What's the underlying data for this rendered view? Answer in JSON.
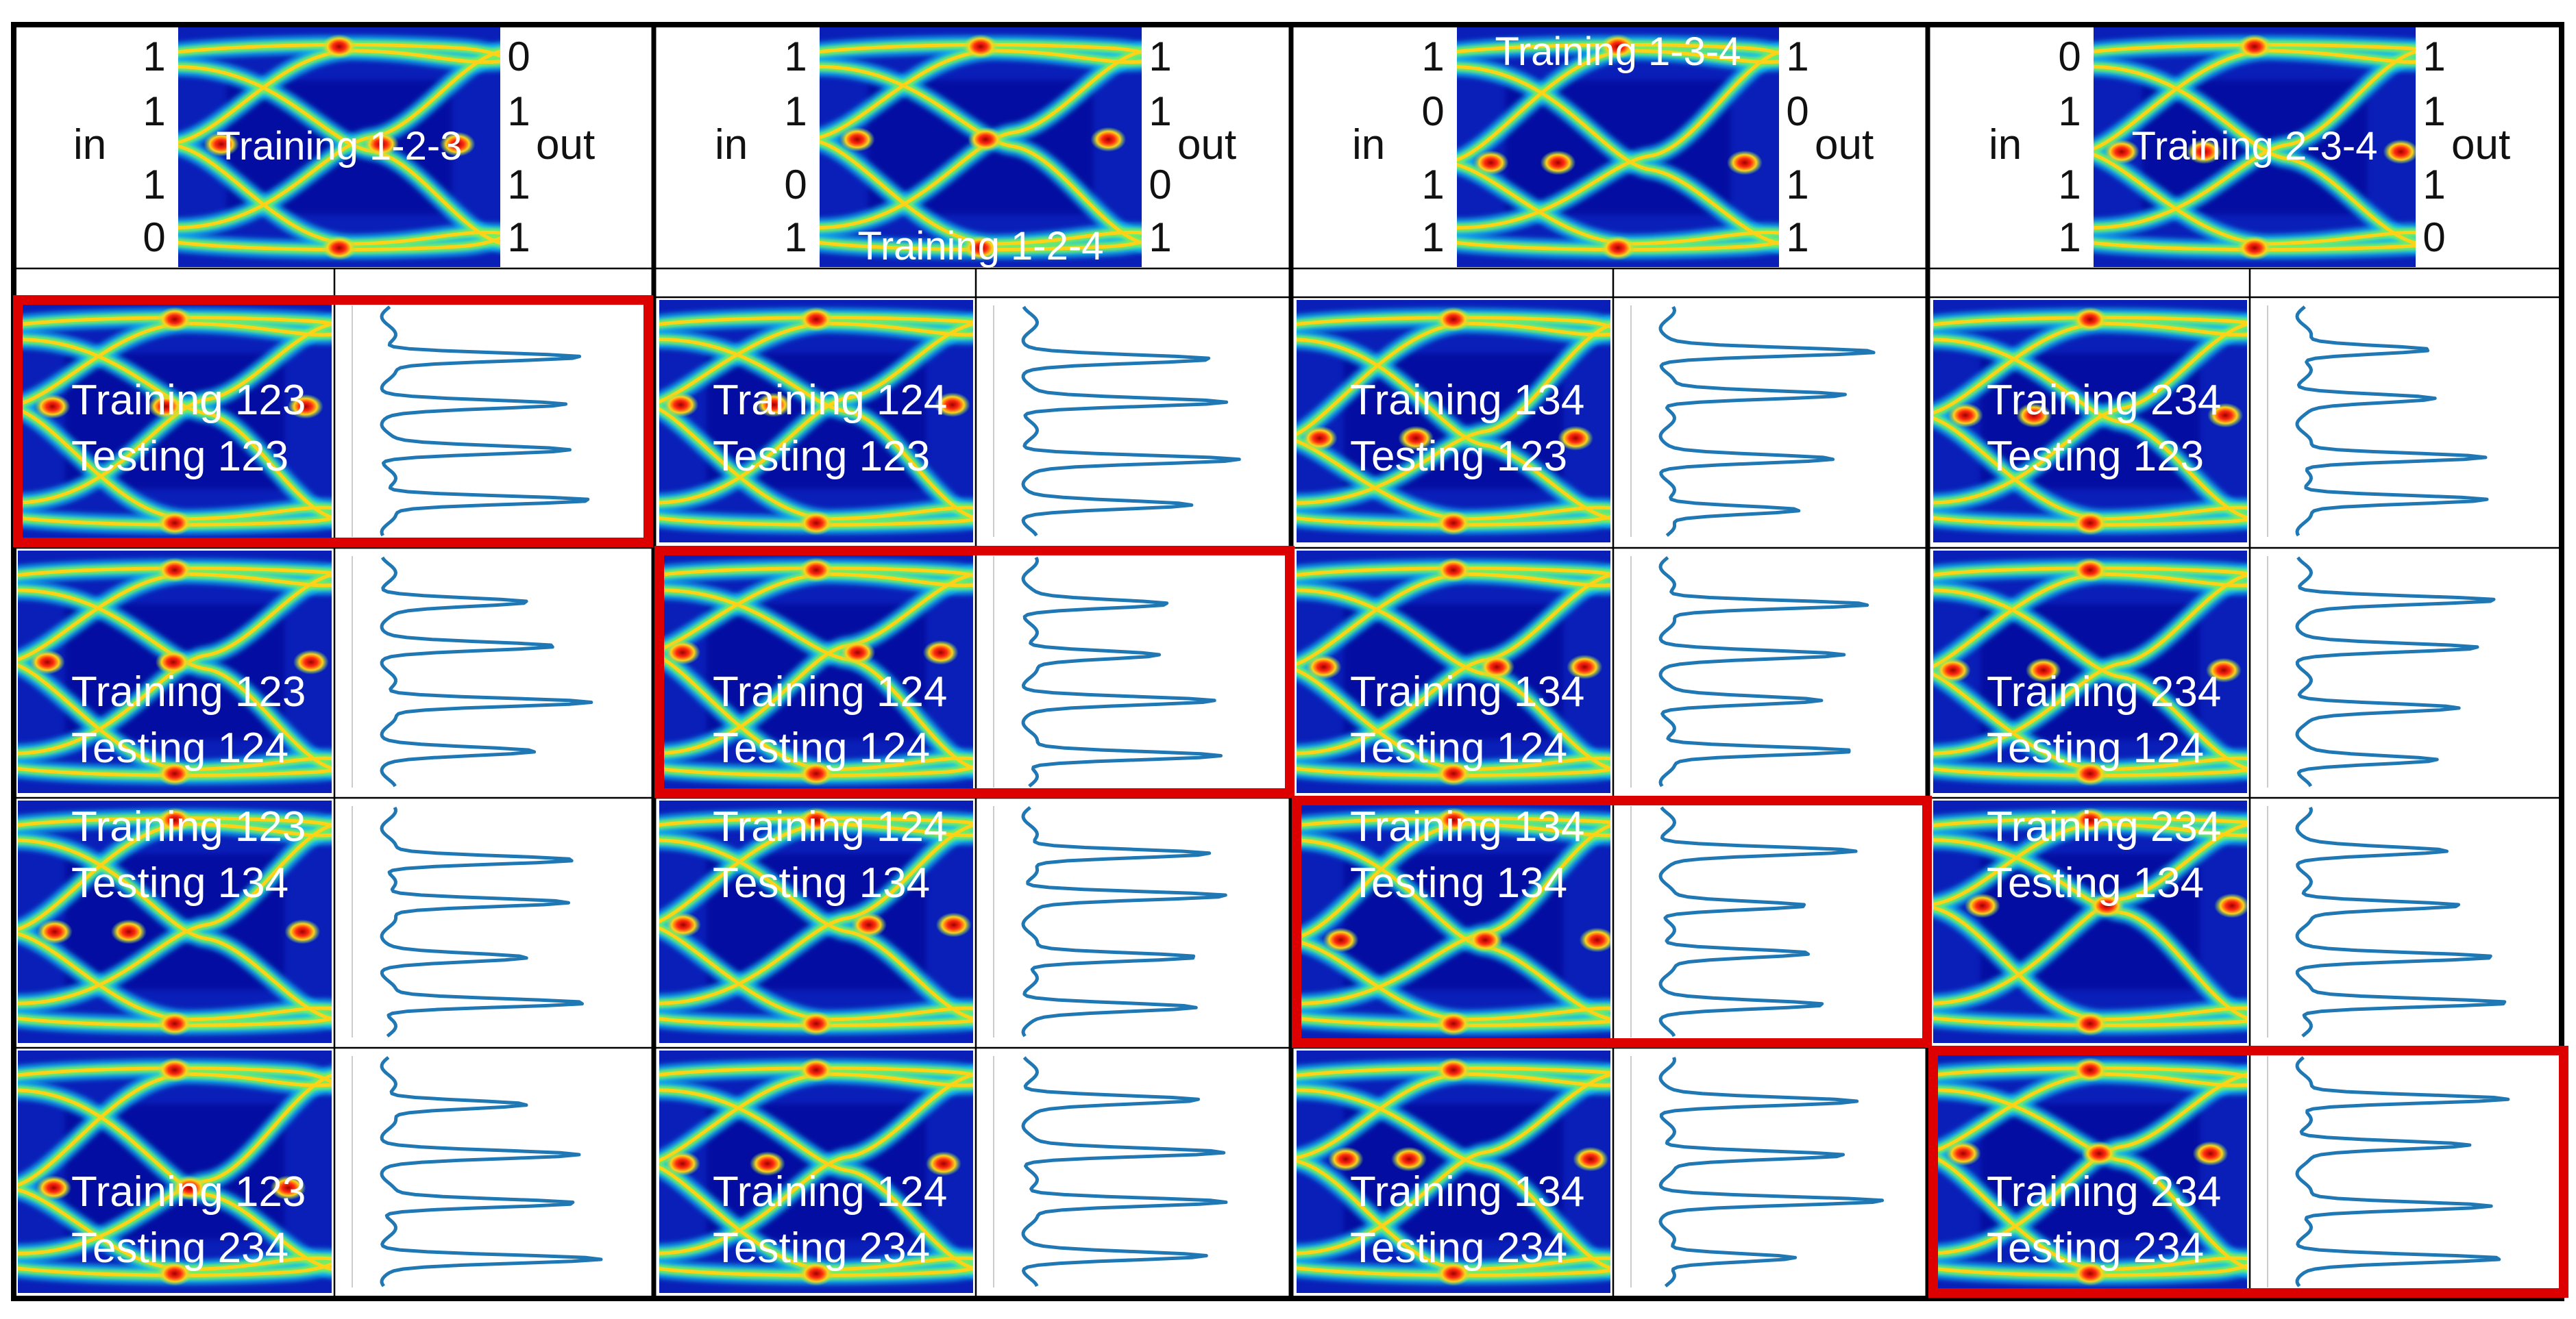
{
  "columns": [
    {
      "training_label": "Training 1-2-3",
      "title_pos": "middle",
      "in_label": "in",
      "out_label": "out",
      "in_bits": [
        "1",
        "1",
        "1",
        "0"
      ],
      "out_bits": [
        "0",
        "1",
        "1",
        "1"
      ]
    },
    {
      "training_label": "Training 1-2-4",
      "title_pos": "bottom",
      "in_label": "in",
      "out_label": "out",
      "in_bits": [
        "1",
        "1",
        "0",
        "1"
      ],
      "out_bits": [
        "1",
        "1",
        "0",
        "1"
      ]
    },
    {
      "training_label": "Training 1-3-4",
      "title_pos": "top",
      "in_label": "in",
      "out_label": "out",
      "in_bits": [
        "1",
        "0",
        "1",
        "1"
      ],
      "out_bits": [
        "1",
        "0",
        "1",
        "1"
      ]
    },
    {
      "training_label": "Training 2-3-4",
      "title_pos": "middle",
      "in_label": "in",
      "out_label": "out",
      "in_bits": [
        "0",
        "1",
        "1",
        "1"
      ],
      "out_bits": [
        "1",
        "1",
        "1",
        "0"
      ]
    }
  ],
  "grid": {
    "rows": [
      {
        "testing": "Testing 123",
        "cells": [
          {
            "training": "Training 123",
            "highlighted": true
          },
          {
            "training": "Training 124",
            "highlighted": false
          },
          {
            "training": "Training 134",
            "highlighted": false
          },
          {
            "training": "Training 234",
            "highlighted": false
          }
        ]
      },
      {
        "testing": "Testing 124",
        "cells": [
          {
            "training": "Training 123",
            "highlighted": false
          },
          {
            "training": "Training 124",
            "highlighted": true
          },
          {
            "training": "Training 134",
            "highlighted": false
          },
          {
            "training": "Training 234",
            "highlighted": false
          }
        ]
      },
      {
        "testing": "Testing 134",
        "cells": [
          {
            "training": "Training 123",
            "highlighted": false
          },
          {
            "training": "Training 124",
            "highlighted": false
          },
          {
            "training": "Training 134",
            "highlighted": true
          },
          {
            "training": "Training 234",
            "highlighted": false
          }
        ]
      },
      {
        "testing": "Testing 234",
        "cells": [
          {
            "training": "Training 123",
            "highlighted": false
          },
          {
            "training": "Training 124",
            "highlighted": false
          },
          {
            "training": "Training 134",
            "highlighted": false
          },
          {
            "training": "Training 234",
            "highlighted": true
          }
        ]
      }
    ]
  },
  "colors": {
    "eye_background": "#0a1fb8",
    "eye_deep": "#00008f",
    "trace_outer": "#12c8f0",
    "trace_mid": "#7cf05a",
    "trace_core": "#ffd21a",
    "crossing": "#ff2a10",
    "profile_line": "#1f77b4",
    "highlight_frame": "#dd0000",
    "grid_line": "#000000"
  }
}
